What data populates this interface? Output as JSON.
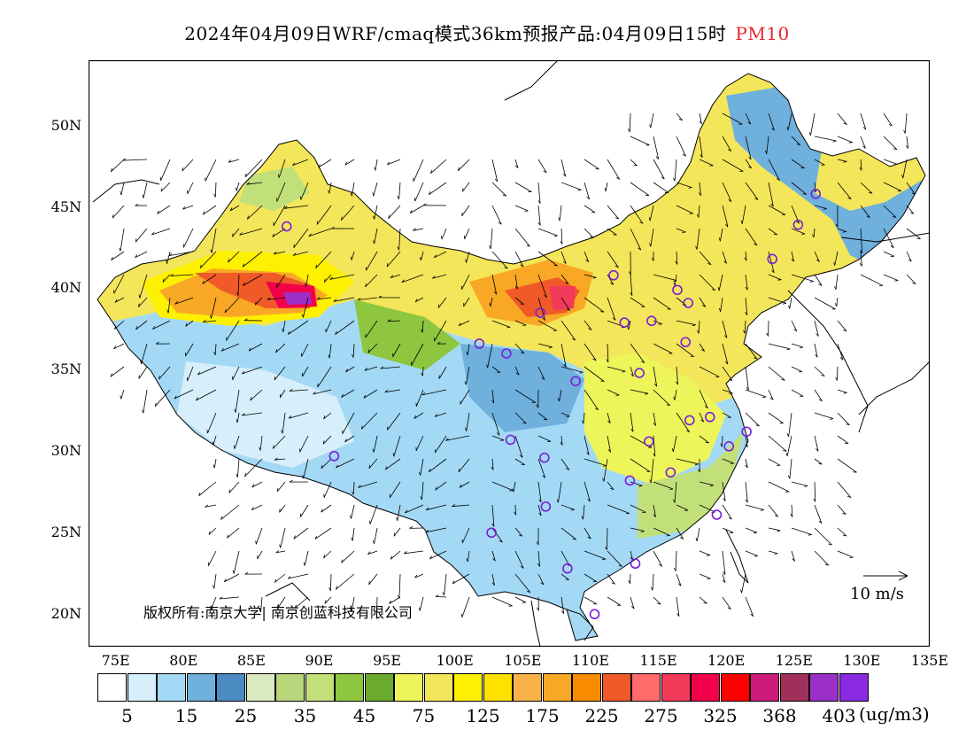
{
  "title": {
    "main": "2024年04月09日WRF/cmaq模式36km预报产品:04月09日15时",
    "variable": "PM10",
    "variable_color": "#e8232c"
  },
  "axes": {
    "y_labels": [
      "50N",
      "45N",
      "40N",
      "35N",
      "30N",
      "25N",
      "20N"
    ],
    "x_labels": [
      "75E",
      "80E",
      "85E",
      "90E",
      "95E",
      "100E",
      "105E",
      "110E",
      "115E",
      "120E",
      "125E",
      "130E",
      "135E"
    ]
  },
  "colorbar": {
    "colors": [
      "#ffffff",
      "#d6effa",
      "#a3d9f5",
      "#6fb0dd",
      "#4a8cc2",
      "#dbe9c0",
      "#b9d67a",
      "#c2e07a",
      "#8ec63f",
      "#6aab2e",
      "#eef55a",
      "#f4e65a",
      "#fdf000",
      "#fde200",
      "#f7b347",
      "#f9a825",
      "#f98b00",
      "#f05a28",
      "#ff6b6b",
      "#f43a5a",
      "#f2004a",
      "#ff0000",
      "#cc1a7a",
      "#a0305a",
      "#9b30c8",
      "#8a2be2"
    ],
    "labels": [
      "5",
      "15",
      "25",
      "35",
      "45",
      "75",
      "125",
      "175",
      "225",
      "275",
      "325",
      "368",
      "403"
    ],
    "unit": "(ug/m3)"
  },
  "copyright": "版权所有:南京大学| 南京创蓝科技有限公司",
  "wind_reference": "10 m/s",
  "cities": [
    {
      "lon": 87.6,
      "lat": 43.8
    },
    {
      "lon": 91.1,
      "lat": 29.7
    },
    {
      "lon": 101.8,
      "lat": 36.6
    },
    {
      "lon": 103.8,
      "lat": 36.0
    },
    {
      "lon": 106.3,
      "lat": 38.5
    },
    {
      "lon": 111.7,
      "lat": 40.8
    },
    {
      "lon": 112.5,
      "lat": 37.9
    },
    {
      "lon": 114.5,
      "lat": 38.0
    },
    {
      "lon": 116.4,
      "lat": 39.9
    },
    {
      "lon": 117.2,
      "lat": 39.1
    },
    {
      "lon": 117.0,
      "lat": 36.7
    },
    {
      "lon": 113.6,
      "lat": 34.8
    },
    {
      "lon": 108.9,
      "lat": 34.3
    },
    {
      "lon": 104.1,
      "lat": 30.7
    },
    {
      "lon": 106.6,
      "lat": 29.6
    },
    {
      "lon": 106.7,
      "lat": 26.6
    },
    {
      "lon": 102.7,
      "lat": 25.0
    },
    {
      "lon": 108.3,
      "lat": 22.8
    },
    {
      "lon": 113.3,
      "lat": 23.1
    },
    {
      "lon": 110.3,
      "lat": 20.0
    },
    {
      "lon": 112.9,
      "lat": 28.2
    },
    {
      "lon": 115.9,
      "lat": 28.7
    },
    {
      "lon": 114.3,
      "lat": 30.6
    },
    {
      "lon": 117.3,
      "lat": 31.9
    },
    {
      "lon": 118.8,
      "lat": 32.1
    },
    {
      "lon": 120.2,
      "lat": 30.3
    },
    {
      "lon": 121.5,
      "lat": 31.2
    },
    {
      "lon": 119.3,
      "lat": 26.1
    },
    {
      "lon": 123.4,
      "lat": 41.8
    },
    {
      "lon": 125.3,
      "lat": 43.9
    },
    {
      "lon": 126.6,
      "lat": 45.8
    }
  ]
}
